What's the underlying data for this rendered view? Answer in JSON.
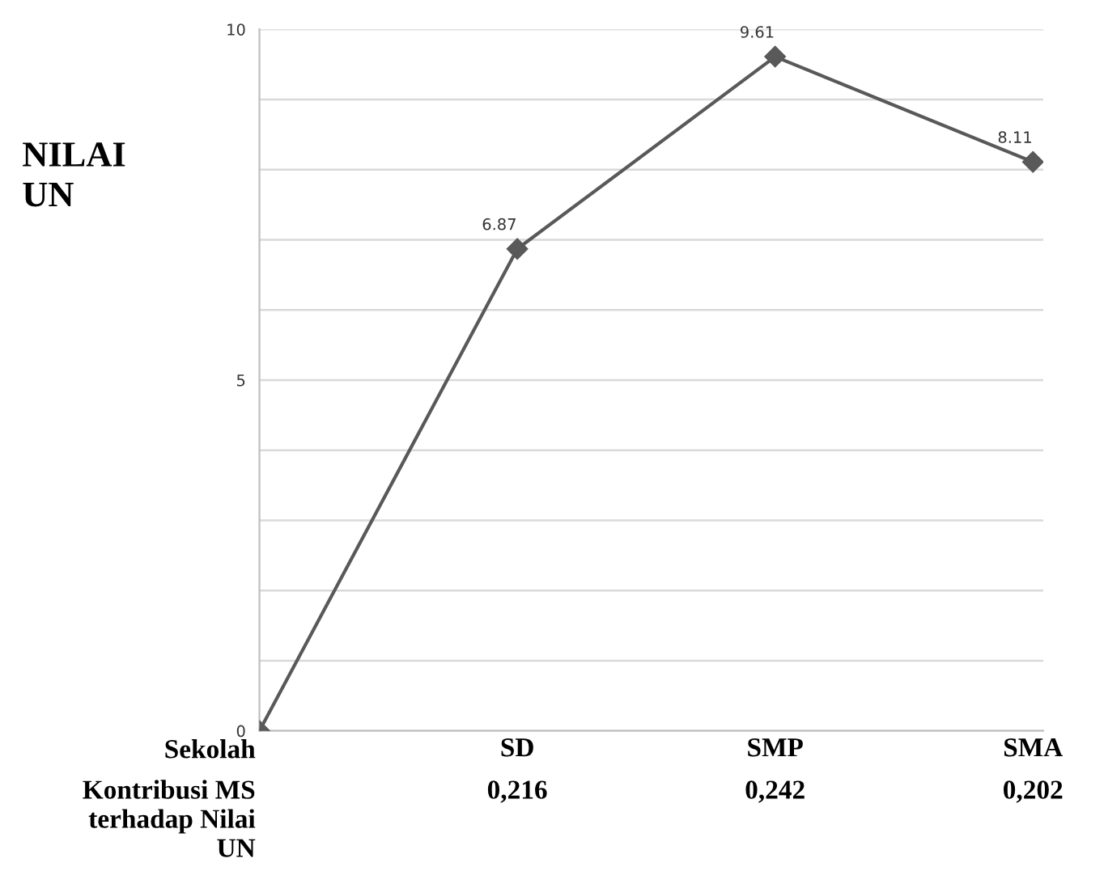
{
  "chart_data": {
    "type": "line",
    "ylabel": "NILAI\nUN",
    "xlabel": "Sekolah",
    "categories": [
      null,
      "SD",
      "SMP",
      "SMA"
    ],
    "series": [
      {
        "color": "#595959",
        "values": [
          0,
          6.87,
          9.61,
          8.11
        ],
        "value_labels": [
          null,
          "6.87",
          "9.61",
          "8.11"
        ]
      }
    ],
    "marker": "diamond",
    "ylim": [
      0,
      10
    ],
    "yticks": [
      0,
      {
        "value": 1,
        "label": null
      },
      {
        "value": 2,
        "label": null
      },
      {
        "value": 3,
        "label": null
      },
      {
        "value": 4,
        "label": null
      },
      5,
      {
        "value": 6,
        "label": null
      },
      {
        "value": 7,
        "label": null
      },
      {
        "value": 8,
        "label": null
      },
      {
        "value": 9,
        "label": null
      },
      10
    ],
    "grid": "y",
    "annotations": [
      "Kontribusi MS\nterhadap Nilai\nUN",
      "0,216",
      "0,242",
      "0,202"
    ]
  }
}
